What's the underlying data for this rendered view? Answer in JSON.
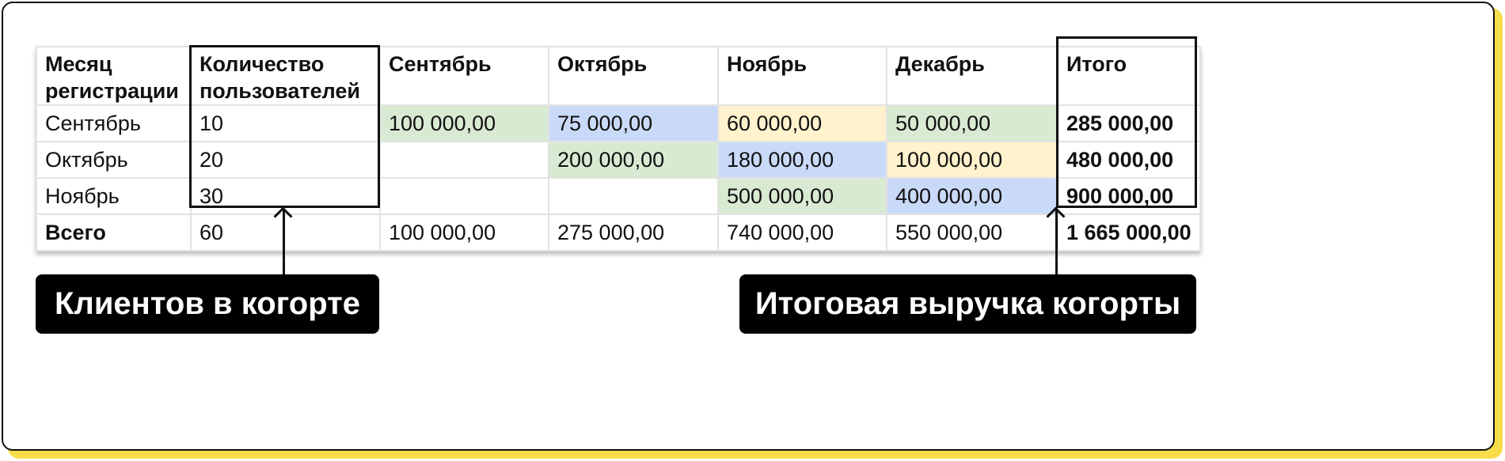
{
  "table": {
    "headers": [
      "Месяц регистрации",
      "Количество пользователей",
      "Сентябрь",
      "Октябрь",
      "Ноябрь",
      "Декабрь",
      "Итого"
    ],
    "rows": [
      {
        "month": "Сентябрь",
        "users": "10",
        "cells": [
          "100 000,00",
          "75 000,00",
          "60 000,00",
          "50 000,00"
        ],
        "total": "285 000,00"
      },
      {
        "month": "Октябрь",
        "users": "20",
        "cells": [
          "",
          "200 000,00",
          "180 000,00",
          "100 000,00"
        ],
        "total": "480 000,00"
      },
      {
        "month": "Ноябрь",
        "users": "30",
        "cells": [
          "",
          "",
          "500 000,00",
          "400 000,00"
        ],
        "total": "900 000,00"
      }
    ],
    "footer": {
      "label": "Всего",
      "users": "60",
      "cells": [
        "100 000,00",
        "275 000,00",
        "740 000,00",
        "550 000,00"
      ],
      "total": "1 665 000,00"
    }
  },
  "colors": {
    "green": "#d9ead3",
    "blue": "#c9daf8",
    "yellow": "#fff2cc",
    "frame_shadow": "#f7dd4a"
  },
  "annotations": {
    "left": "Клиентов в когорте",
    "right": "Итоговая выручка когорты"
  }
}
